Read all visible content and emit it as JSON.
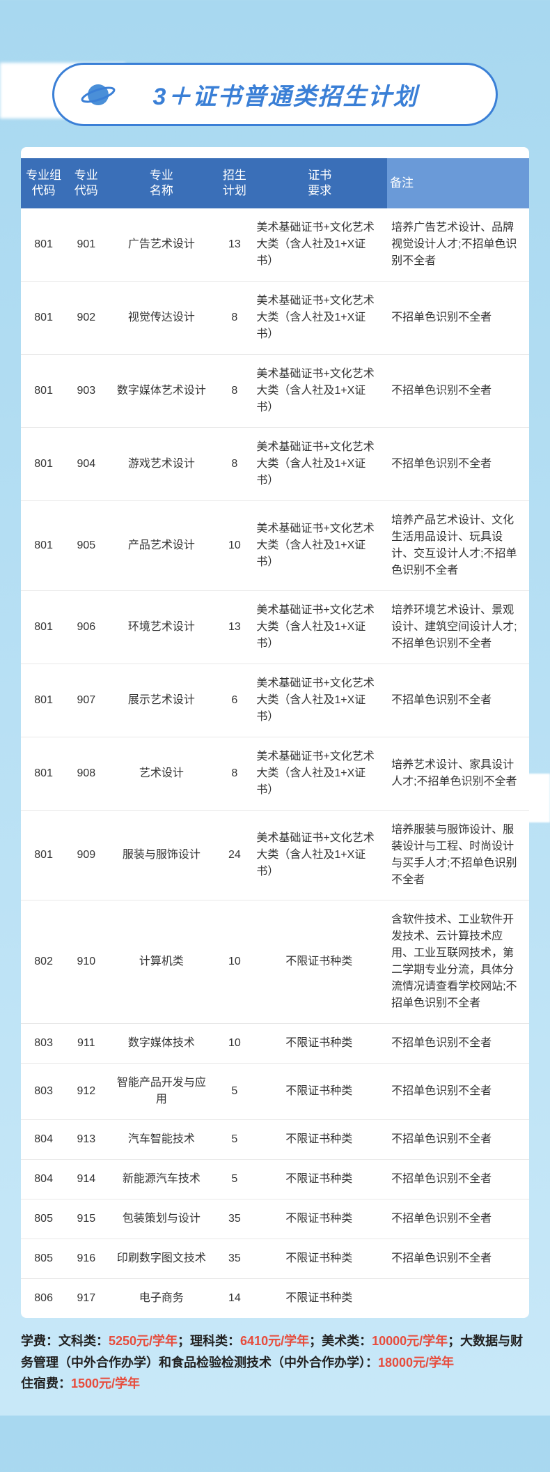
{
  "title": "3＋证书普通类招生计划",
  "colors": {
    "header_bg": "#3a6fb8",
    "header_bg_last": "#6a9ad8",
    "header_text": "#ffffff",
    "border": "#e8e8e8",
    "body_text": "#333333",
    "title_text": "#3a7fd6",
    "bg_top": "#a8d8f0",
    "highlight": "#e74c3c"
  },
  "table": {
    "columns": [
      {
        "key": "group",
        "label": "专业组\n代码"
      },
      {
        "key": "major",
        "label": "专业\n代码"
      },
      {
        "key": "name",
        "label": "专业\n名称"
      },
      {
        "key": "plan",
        "label": "招生\n计划"
      },
      {
        "key": "req",
        "label": "证书\n要求"
      },
      {
        "key": "note",
        "label": "备注"
      }
    ],
    "rows": [
      {
        "group": "801",
        "major": "901",
        "name": "广告艺术设计",
        "plan": "13",
        "req": "美术基础证书+文化艺术大类（含人社及1+X证书）",
        "note": "培养广告艺术设计、品牌视觉设计人才;不招单色识别不全者"
      },
      {
        "group": "801",
        "major": "902",
        "name": "视觉传达设计",
        "plan": "8",
        "req": "美术基础证书+文化艺术大类（含人社及1+X证书）",
        "note": "不招单色识别不全者"
      },
      {
        "group": "801",
        "major": "903",
        "name": "数字媒体艺术设计",
        "plan": "8",
        "req": "美术基础证书+文化艺术大类（含人社及1+X证书）",
        "note": "不招单色识别不全者"
      },
      {
        "group": "801",
        "major": "904",
        "name": "游戏艺术设计",
        "plan": "8",
        "req": "美术基础证书+文化艺术大类（含人社及1+X证书）",
        "note": "不招单色识别不全者"
      },
      {
        "group": "801",
        "major": "905",
        "name": "产品艺术设计",
        "plan": "10",
        "req": "美术基础证书+文化艺术大类（含人社及1+X证书）",
        "note": "培养产品艺术设计、文化生活用品设计、玩具设计、交互设计人才;不招单色识别不全者"
      },
      {
        "group": "801",
        "major": "906",
        "name": "环境艺术设计",
        "plan": "13",
        "req": "美术基础证书+文化艺术大类（含人社及1+X证书）",
        "note": "培养环境艺术设计、景观设计、建筑空间设计人才;不招单色识别不全者"
      },
      {
        "group": "801",
        "major": "907",
        "name": "展示艺术设计",
        "plan": "6",
        "req": "美术基础证书+文化艺术大类（含人社及1+X证书）",
        "note": "不招单色识别不全者"
      },
      {
        "group": "801",
        "major": "908",
        "name": "艺术设计",
        "plan": "8",
        "req": "美术基础证书+文化艺术大类（含人社及1+X证书）",
        "note": "培养艺术设计、家具设计人才;不招单色识别不全者"
      },
      {
        "group": "801",
        "major": "909",
        "name": "服装与服饰设计",
        "plan": "24",
        "req": "美术基础证书+文化艺术大类（含人社及1+X证书）",
        "note": "培养服装与服饰设计、服装设计与工程、时尚设计与买手人才;不招单色识别不全者"
      },
      {
        "group": "802",
        "major": "910",
        "name": "计算机类",
        "plan": "10",
        "req": "不限证书种类",
        "note": "含软件技术、工业软件开发技术、云计算技术应用、工业互联网技术，第二学期专业分流，具体分流情况请查看学校网站;不招单色识别不全者"
      },
      {
        "group": "803",
        "major": "911",
        "name": "数字媒体技术",
        "plan": "10",
        "req": "不限证书种类",
        "note": "不招单色识别不全者"
      },
      {
        "group": "803",
        "major": "912",
        "name": "智能产品开发与应用",
        "plan": "5",
        "req": "不限证书种类",
        "note": "不招单色识别不全者"
      },
      {
        "group": "804",
        "major": "913",
        "name": "汽车智能技术",
        "plan": "5",
        "req": "不限证书种类",
        "note": "不招单色识别不全者"
      },
      {
        "group": "804",
        "major": "914",
        "name": "新能源汽车技术",
        "plan": "5",
        "req": "不限证书种类",
        "note": "不招单色识别不全者"
      },
      {
        "group": "805",
        "major": "915",
        "name": "包装策划与设计",
        "plan": "35",
        "req": "不限证书种类",
        "note": "不招单色识别不全者"
      },
      {
        "group": "805",
        "major": "916",
        "name": "印刷数字图文技术",
        "plan": "35",
        "req": "不限证书种类",
        "note": "不招单色识别不全者"
      },
      {
        "group": "806",
        "major": "917",
        "name": "电子商务",
        "plan": "14",
        "req": "不限证书种类",
        "note": ""
      }
    ]
  },
  "footer": {
    "l1a": "学费：文科类：",
    "l1b": "5250元/学年",
    "l1c": "；理科类：",
    "l1d": "6410元/学年",
    "l1e": "；美术类：",
    "l1f": "10000元/学年",
    "l1g": "；大数据与财务管理（中外合作办学）和食品检验检测技术（中外合作办学）：",
    "l1h": "18000元/学年",
    "l2a": "住宿费：",
    "l2b": "1500元/学年"
  }
}
